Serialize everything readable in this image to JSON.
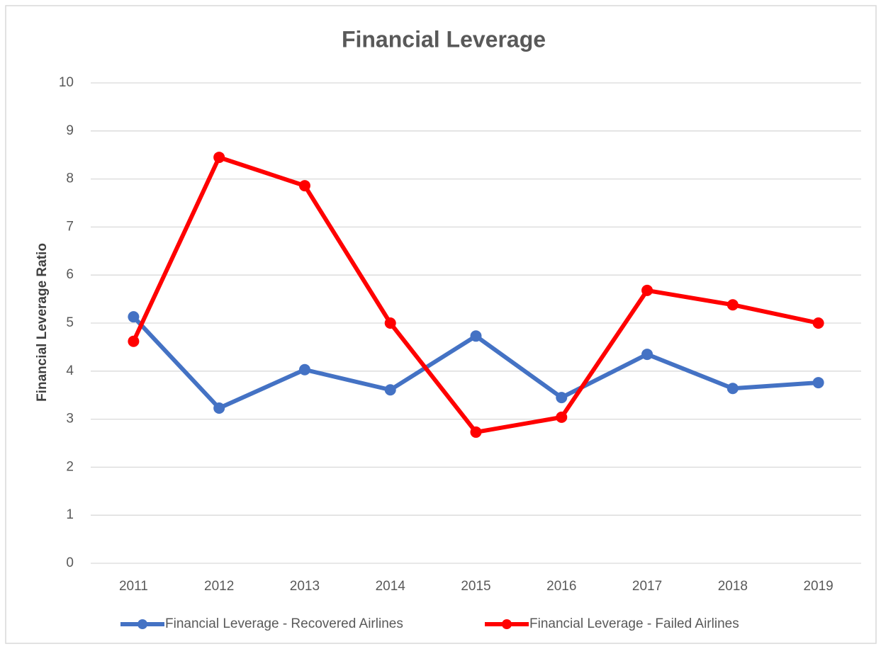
{
  "chart_data": {
    "type": "line",
    "title": "Financial Leverage",
    "y_label": "Financial Leverage Ratio",
    "categories": [
      "2011",
      "2012",
      "2013",
      "2014",
      "2015",
      "2016",
      "2017",
      "2018",
      "2019"
    ],
    "series": [
      {
        "name": "Financial Leverage - Recovered Airlines",
        "color": "#4472c4",
        "values": [
          5.13,
          3.23,
          4.03,
          3.61,
          4.73,
          3.45,
          4.35,
          3.64,
          3.76
        ]
      },
      {
        "name": "Financial Leverage - Failed Airlines",
        "color": "#ff0000",
        "values": [
          4.62,
          8.45,
          7.86,
          5.0,
          2.73,
          3.04,
          5.68,
          5.38,
          5.0
        ]
      }
    ],
    "ylim": [
      0,
      10
    ],
    "yticks": [
      0,
      1,
      2,
      3,
      4,
      5,
      6,
      7,
      8,
      9,
      10
    ],
    "grid": true,
    "legend": "bottom"
  }
}
